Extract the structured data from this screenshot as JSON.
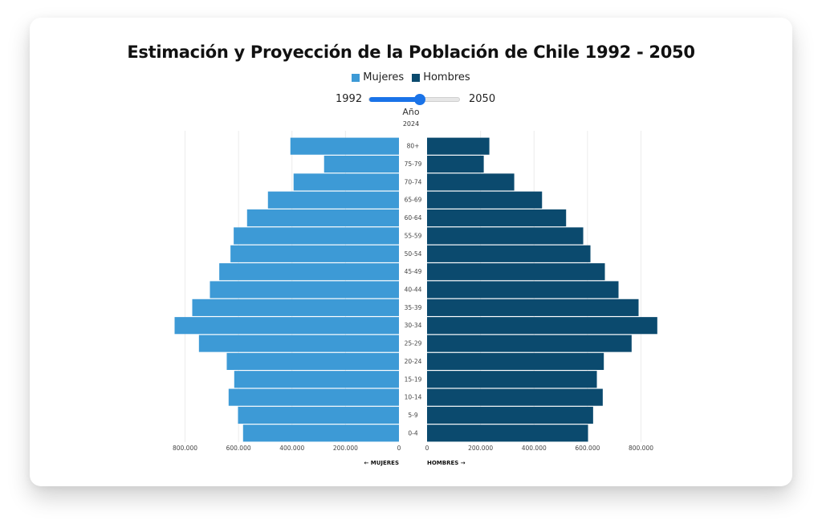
{
  "chart_data": {
    "type": "bar",
    "subtype": "population-pyramid",
    "title": "Estimación y Proyección de la Población de Chile 1992 - 2050",
    "legend": [
      {
        "name": "Mujeres",
        "color": "#3d9ad6"
      },
      {
        "name": "Hombres",
        "color": "#0b4a6e"
      }
    ],
    "legend_position": "top-center",
    "slider": {
      "min_label": "1992",
      "max_label": "2050",
      "min": 1992,
      "max": 2050,
      "value": 2024,
      "label": "Año",
      "value_label": "2024"
    },
    "categories": [
      "80+",
      "75-79",
      "70-74",
      "65-69",
      "60-64",
      "55-59",
      "50-54",
      "45-49",
      "40-44",
      "35-39",
      "30-34",
      "25-29",
      "20-24",
      "15-19",
      "10-14",
      "5-9",
      "0-4"
    ],
    "series": [
      {
        "name": "Mujeres",
        "side": "left",
        "values": [
          406000,
          280000,
          394000,
          490000,
          568000,
          618000,
          630000,
          672000,
          707000,
          773000,
          839000,
          748000,
          644000,
          616000,
          637000,
          602000,
          583000
        ]
      },
      {
        "name": "Hombres",
        "side": "right",
        "values": [
          233000,
          212000,
          326000,
          430000,
          520000,
          584000,
          611000,
          665000,
          716000,
          791000,
          861000,
          765000,
          661000,
          635000,
          657000,
          621000,
          602000
        ]
      }
    ],
    "xlim": [
      0,
      800000
    ],
    "x_ticks_left": [
      "800.000",
      "600.000",
      "400.000",
      "200.000",
      "0"
    ],
    "x_ticks_right": [
      "0",
      "200.000",
      "400.000",
      "600.000",
      "800.000"
    ],
    "x_tick_values": [
      0,
      200000,
      400000,
      600000,
      800000
    ],
    "xlabel_left": "← MUJERES",
    "xlabel_right": "HOMBRES →",
    "grid": true
  }
}
